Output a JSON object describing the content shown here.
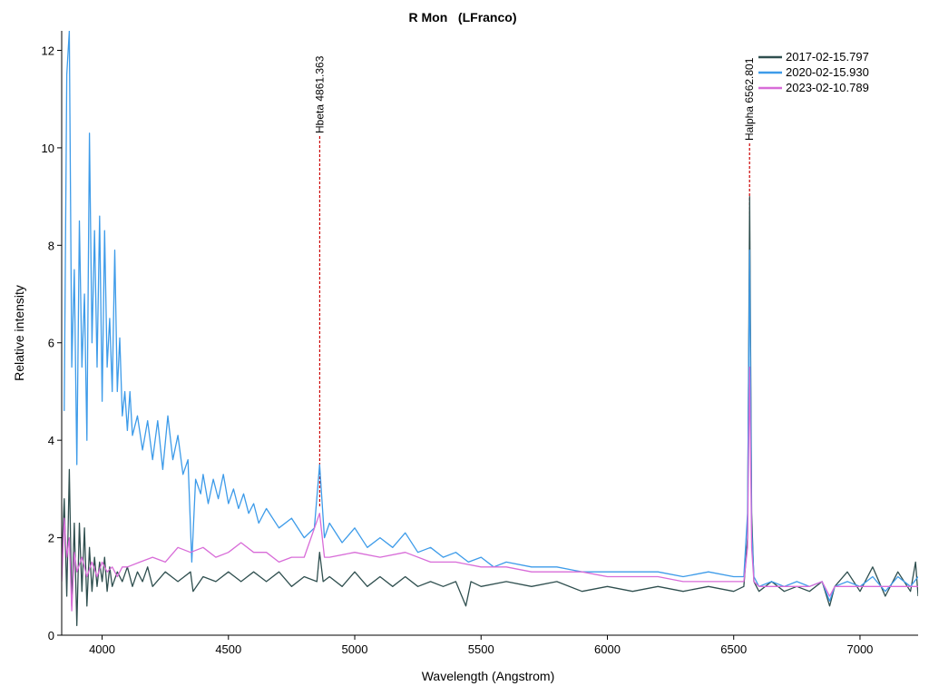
{
  "chart_data": {
    "type": "line",
    "title": "R Mon   (LFranco)",
    "xlabel": "Wavelength (Angstrom)",
    "ylabel": "Relative intensity",
    "xlim": [
      3840,
      7230
    ],
    "ylim": [
      0,
      12.4
    ],
    "x_ticks": [
      4000,
      4500,
      5000,
      5500,
      6000,
      6500,
      7000
    ],
    "y_ticks": [
      0,
      2,
      4,
      6,
      8,
      10,
      12
    ],
    "legend_position": "top-right",
    "grid": false,
    "series": [
      {
        "name": "2017-02-15.797",
        "color": "#2f4f4f",
        "points": [
          [
            3840,
            1.5
          ],
          [
            3850,
            2.8
          ],
          [
            3860,
            0.8
          ],
          [
            3870,
            3.4
          ],
          [
            3880,
            0.6
          ],
          [
            3890,
            2.3
          ],
          [
            3900,
            0.2
          ],
          [
            3910,
            2.3
          ],
          [
            3920,
            0.9
          ],
          [
            3930,
            2.2
          ],
          [
            3940,
            0.6
          ],
          [
            3950,
            1.8
          ],
          [
            3960,
            0.9
          ],
          [
            3970,
            1.6
          ],
          [
            3980,
            1.0
          ],
          [
            3990,
            1.5
          ],
          [
            4000,
            1.1
          ],
          [
            4010,
            1.6
          ],
          [
            4020,
            0.9
          ],
          [
            4030,
            1.4
          ],
          [
            4040,
            1.0
          ],
          [
            4060,
            1.3
          ],
          [
            4080,
            1.1
          ],
          [
            4100,
            1.4
          ],
          [
            4120,
            1.0
          ],
          [
            4140,
            1.3
          ],
          [
            4160,
            1.1
          ],
          [
            4180,
            1.4
          ],
          [
            4200,
            1.0
          ],
          [
            4250,
            1.3
          ],
          [
            4300,
            1.1
          ],
          [
            4350,
            1.3
          ],
          [
            4360,
            0.9
          ],
          [
            4400,
            1.2
          ],
          [
            4450,
            1.1
          ],
          [
            4500,
            1.3
          ],
          [
            4550,
            1.1
          ],
          [
            4600,
            1.3
          ],
          [
            4650,
            1.1
          ],
          [
            4700,
            1.3
          ],
          [
            4750,
            1.0
          ],
          [
            4800,
            1.2
          ],
          [
            4850,
            1.1
          ],
          [
            4861,
            1.7
          ],
          [
            4875,
            1.1
          ],
          [
            4900,
            1.2
          ],
          [
            4950,
            1.0
          ],
          [
            5000,
            1.3
          ],
          [
            5050,
            1.0
          ],
          [
            5100,
            1.2
          ],
          [
            5150,
            1.0
          ],
          [
            5200,
            1.2
          ],
          [
            5250,
            1.0
          ],
          [
            5300,
            1.1
          ],
          [
            5350,
            1.0
          ],
          [
            5400,
            1.1
          ],
          [
            5440,
            0.6
          ],
          [
            5460,
            1.1
          ],
          [
            5500,
            1.0
          ],
          [
            5600,
            1.1
          ],
          [
            5700,
            1.0
          ],
          [
            5800,
            1.1
          ],
          [
            5900,
            0.9
          ],
          [
            6000,
            1.0
          ],
          [
            6100,
            0.9
          ],
          [
            6200,
            1.0
          ],
          [
            6300,
            0.9
          ],
          [
            6400,
            1.0
          ],
          [
            6500,
            0.9
          ],
          [
            6540,
            1.0
          ],
          [
            6555,
            2.0
          ],
          [
            6563,
            9.0
          ],
          [
            6571,
            2.5
          ],
          [
            6580,
            1.1
          ],
          [
            6600,
            0.9
          ],
          [
            6650,
            1.1
          ],
          [
            6700,
            0.9
          ],
          [
            6750,
            1.0
          ],
          [
            6800,
            0.9
          ],
          [
            6850,
            1.1
          ],
          [
            6880,
            0.6
          ],
          [
            6900,
            1.0
          ],
          [
            6950,
            1.3
          ],
          [
            7000,
            0.9
          ],
          [
            7050,
            1.4
          ],
          [
            7100,
            0.8
          ],
          [
            7150,
            1.3
          ],
          [
            7200,
            0.9
          ],
          [
            7220,
            1.5
          ],
          [
            7230,
            0.8
          ]
        ]
      },
      {
        "name": "2020-02-15.930",
        "color": "#3d9be9",
        "points": [
          [
            3850,
            4.6
          ],
          [
            3860,
            11.5
          ],
          [
            3870,
            12.4
          ],
          [
            3880,
            5.5
          ],
          [
            3890,
            7.5
          ],
          [
            3900,
            3.5
          ],
          [
            3910,
            8.5
          ],
          [
            3920,
            5.5
          ],
          [
            3930,
            7.0
          ],
          [
            3940,
            4.0
          ],
          [
            3950,
            10.3
          ],
          [
            3960,
            6.0
          ],
          [
            3970,
            8.3
          ],
          [
            3980,
            5.5
          ],
          [
            3990,
            8.6
          ],
          [
            4000,
            4.8
          ],
          [
            4010,
            8.3
          ],
          [
            4020,
            5.5
          ],
          [
            4030,
            6.5
          ],
          [
            4040,
            5.0
          ],
          [
            4050,
            7.9
          ],
          [
            4060,
            5.0
          ],
          [
            4070,
            6.1
          ],
          [
            4080,
            4.5
          ],
          [
            4090,
            5.0
          ],
          [
            4100,
            4.2
          ],
          [
            4110,
            5.0
          ],
          [
            4120,
            4.1
          ],
          [
            4140,
            4.5
          ],
          [
            4160,
            3.8
          ],
          [
            4180,
            4.4
          ],
          [
            4200,
            3.6
          ],
          [
            4220,
            4.4
          ],
          [
            4240,
            3.4
          ],
          [
            4260,
            4.5
          ],
          [
            4280,
            3.6
          ],
          [
            4300,
            4.1
          ],
          [
            4320,
            3.3
          ],
          [
            4340,
            3.6
          ],
          [
            4355,
            1.5
          ],
          [
            4370,
            3.2
          ],
          [
            4390,
            2.9
          ],
          [
            4400,
            3.3
          ],
          [
            4420,
            2.7
          ],
          [
            4440,
            3.2
          ],
          [
            4460,
            2.8
          ],
          [
            4480,
            3.3
          ],
          [
            4500,
            2.7
          ],
          [
            4520,
            3.0
          ],
          [
            4540,
            2.6
          ],
          [
            4560,
            2.9
          ],
          [
            4580,
            2.5
          ],
          [
            4600,
            2.7
          ],
          [
            4620,
            2.3
          ],
          [
            4650,
            2.6
          ],
          [
            4700,
            2.2
          ],
          [
            4750,
            2.4
          ],
          [
            4800,
            2.0
          ],
          [
            4840,
            2.2
          ],
          [
            4861,
            3.5
          ],
          [
            4880,
            2.0
          ],
          [
            4900,
            2.3
          ],
          [
            4950,
            1.9
          ],
          [
            5000,
            2.2
          ],
          [
            5050,
            1.8
          ],
          [
            5100,
            2.0
          ],
          [
            5150,
            1.8
          ],
          [
            5200,
            2.1
          ],
          [
            5250,
            1.7
          ],
          [
            5300,
            1.8
          ],
          [
            5350,
            1.6
          ],
          [
            5400,
            1.7
          ],
          [
            5450,
            1.5
          ],
          [
            5500,
            1.6
          ],
          [
            5550,
            1.4
          ],
          [
            5600,
            1.5
          ],
          [
            5700,
            1.4
          ],
          [
            5800,
            1.4
          ],
          [
            5900,
            1.3
          ],
          [
            6000,
            1.3
          ],
          [
            6100,
            1.3
          ],
          [
            6200,
            1.3
          ],
          [
            6300,
            1.2
          ],
          [
            6400,
            1.3
          ],
          [
            6500,
            1.2
          ],
          [
            6540,
            1.2
          ],
          [
            6555,
            2.5
          ],
          [
            6563,
            7.9
          ],
          [
            6571,
            2.2
          ],
          [
            6580,
            1.2
          ],
          [
            6600,
            1.0
          ],
          [
            6650,
            1.1
          ],
          [
            6700,
            1.0
          ],
          [
            6750,
            1.1
          ],
          [
            6800,
            1.0
          ],
          [
            6850,
            1.1
          ],
          [
            6880,
            0.7
          ],
          [
            6900,
            1.0
          ],
          [
            6950,
            1.1
          ],
          [
            7000,
            1.0
          ],
          [
            7050,
            1.2
          ],
          [
            7100,
            0.9
          ],
          [
            7150,
            1.2
          ],
          [
            7200,
            1.0
          ],
          [
            7230,
            1.2
          ]
        ]
      },
      {
        "name": "2023-02-10.789",
        "color": "#d86cd8",
        "points": [
          [
            3840,
            1.1
          ],
          [
            3850,
            2.4
          ],
          [
            3860,
            1.6
          ],
          [
            3870,
            2.0
          ],
          [
            3880,
            0.5
          ],
          [
            3890,
            1.7
          ],
          [
            3900,
            1.3
          ],
          [
            3920,
            1.6
          ],
          [
            3940,
            1.2
          ],
          [
            3960,
            1.5
          ],
          [
            3980,
            1.2
          ],
          [
            4000,
            1.5
          ],
          [
            4020,
            1.3
          ],
          [
            4040,
            1.4
          ],
          [
            4060,
            1.2
          ],
          [
            4080,
            1.4
          ],
          [
            4100,
            1.4
          ],
          [
            4150,
            1.5
          ],
          [
            4200,
            1.6
          ],
          [
            4250,
            1.5
          ],
          [
            4300,
            1.8
          ],
          [
            4350,
            1.7
          ],
          [
            4400,
            1.8
          ],
          [
            4450,
            1.6
          ],
          [
            4500,
            1.7
          ],
          [
            4550,
            1.9
          ],
          [
            4600,
            1.7
          ],
          [
            4650,
            1.7
          ],
          [
            4700,
            1.5
          ],
          [
            4750,
            1.6
          ],
          [
            4800,
            1.6
          ],
          [
            4861,
            2.5
          ],
          [
            4880,
            1.6
          ],
          [
            4900,
            1.6
          ],
          [
            5000,
            1.7
          ],
          [
            5100,
            1.6
          ],
          [
            5200,
            1.7
          ],
          [
            5300,
            1.5
          ],
          [
            5400,
            1.5
          ],
          [
            5500,
            1.4
          ],
          [
            5600,
            1.4
          ],
          [
            5700,
            1.3
          ],
          [
            5800,
            1.3
          ],
          [
            5900,
            1.3
          ],
          [
            6000,
            1.2
          ],
          [
            6100,
            1.2
          ],
          [
            6200,
            1.2
          ],
          [
            6300,
            1.1
          ],
          [
            6400,
            1.1
          ],
          [
            6500,
            1.1
          ],
          [
            6540,
            1.1
          ],
          [
            6555,
            1.8
          ],
          [
            6563,
            5.5
          ],
          [
            6571,
            1.8
          ],
          [
            6580,
            1.1
          ],
          [
            6600,
            1.0
          ],
          [
            6700,
            1.0
          ],
          [
            6800,
            1.0
          ],
          [
            6850,
            1.1
          ],
          [
            6880,
            0.8
          ],
          [
            6900,
            1.0
          ],
          [
            7000,
            1.0
          ],
          [
            7100,
            1.0
          ],
          [
            7200,
            1.0
          ],
          [
            7230,
            1.0
          ]
        ]
      }
    ],
    "annotations": [
      {
        "label": "Hbeta 4861.363",
        "x": 4861.363,
        "color": "#cc0000"
      },
      {
        "label": "Halpha 6562.801",
        "x": 6562.801,
        "color": "#cc0000"
      }
    ]
  }
}
